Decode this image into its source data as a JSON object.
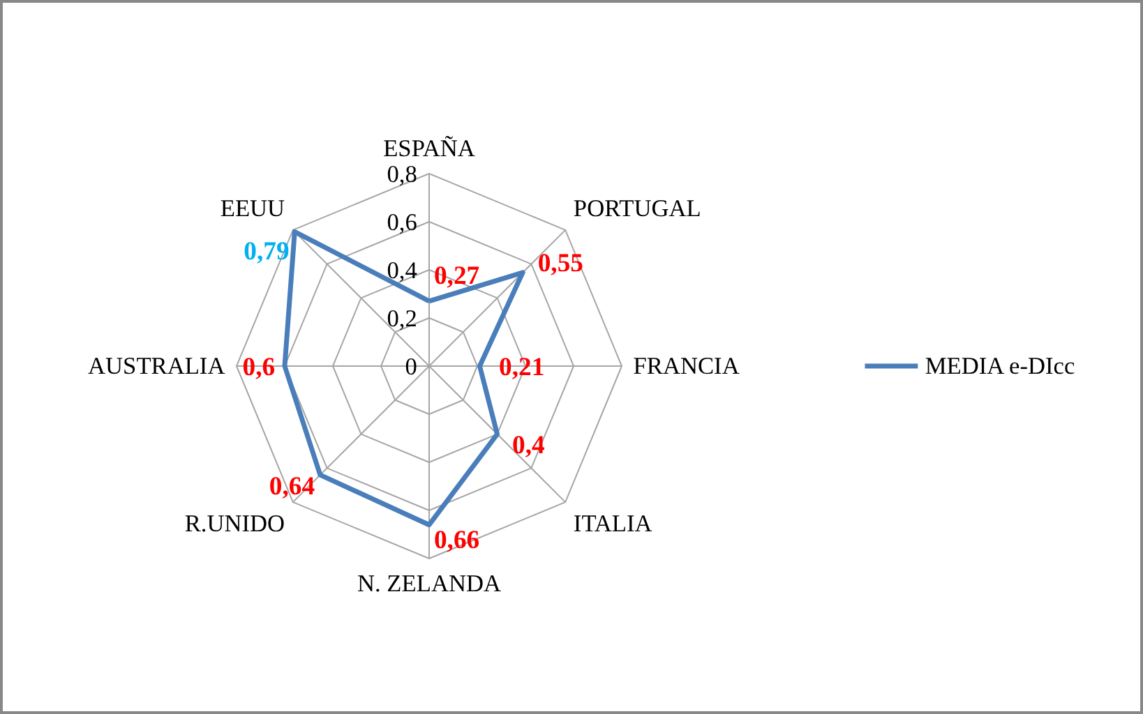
{
  "chart_data": {
    "type": "radar",
    "categories": [
      "ESPAÑA",
      "PORTUGAL",
      "FRANCIA",
      "ITALIA",
      "N. ZELANDA",
      "R.UNIDO",
      "AUSTRALIA",
      "EEUU"
    ],
    "series": [
      {
        "name": "MEDIA e-DIcc",
        "color": "#4a7ebb",
        "values": [
          0.27,
          0.55,
          0.21,
          0.4,
          0.66,
          0.64,
          0.6,
          0.79
        ],
        "value_labels": [
          "0,27",
          "0,55",
          "0,21",
          "0,4",
          "0,66",
          "0,64",
          "0,6",
          "0,79"
        ],
        "colors": [
          "#ff0000",
          "#ff0000",
          "#ff0000",
          "#ff0000",
          "#ff0000",
          "#ff0000",
          "#ff0000",
          "#00b0f0"
        ]
      }
    ],
    "ylim": [
      0,
      0.8
    ],
    "yticks": [
      {
        "value": 0,
        "label": "0"
      },
      {
        "value": 0.2,
        "label": "0,2"
      },
      {
        "value": 0.4,
        "label": "0,4"
      },
      {
        "value": 0.6,
        "label": "0,6"
      },
      {
        "value": 0.8,
        "label": "0,8"
      }
    ],
    "grid": true,
    "legend": "right",
    "marker": "none",
    "line_style": "solid"
  }
}
